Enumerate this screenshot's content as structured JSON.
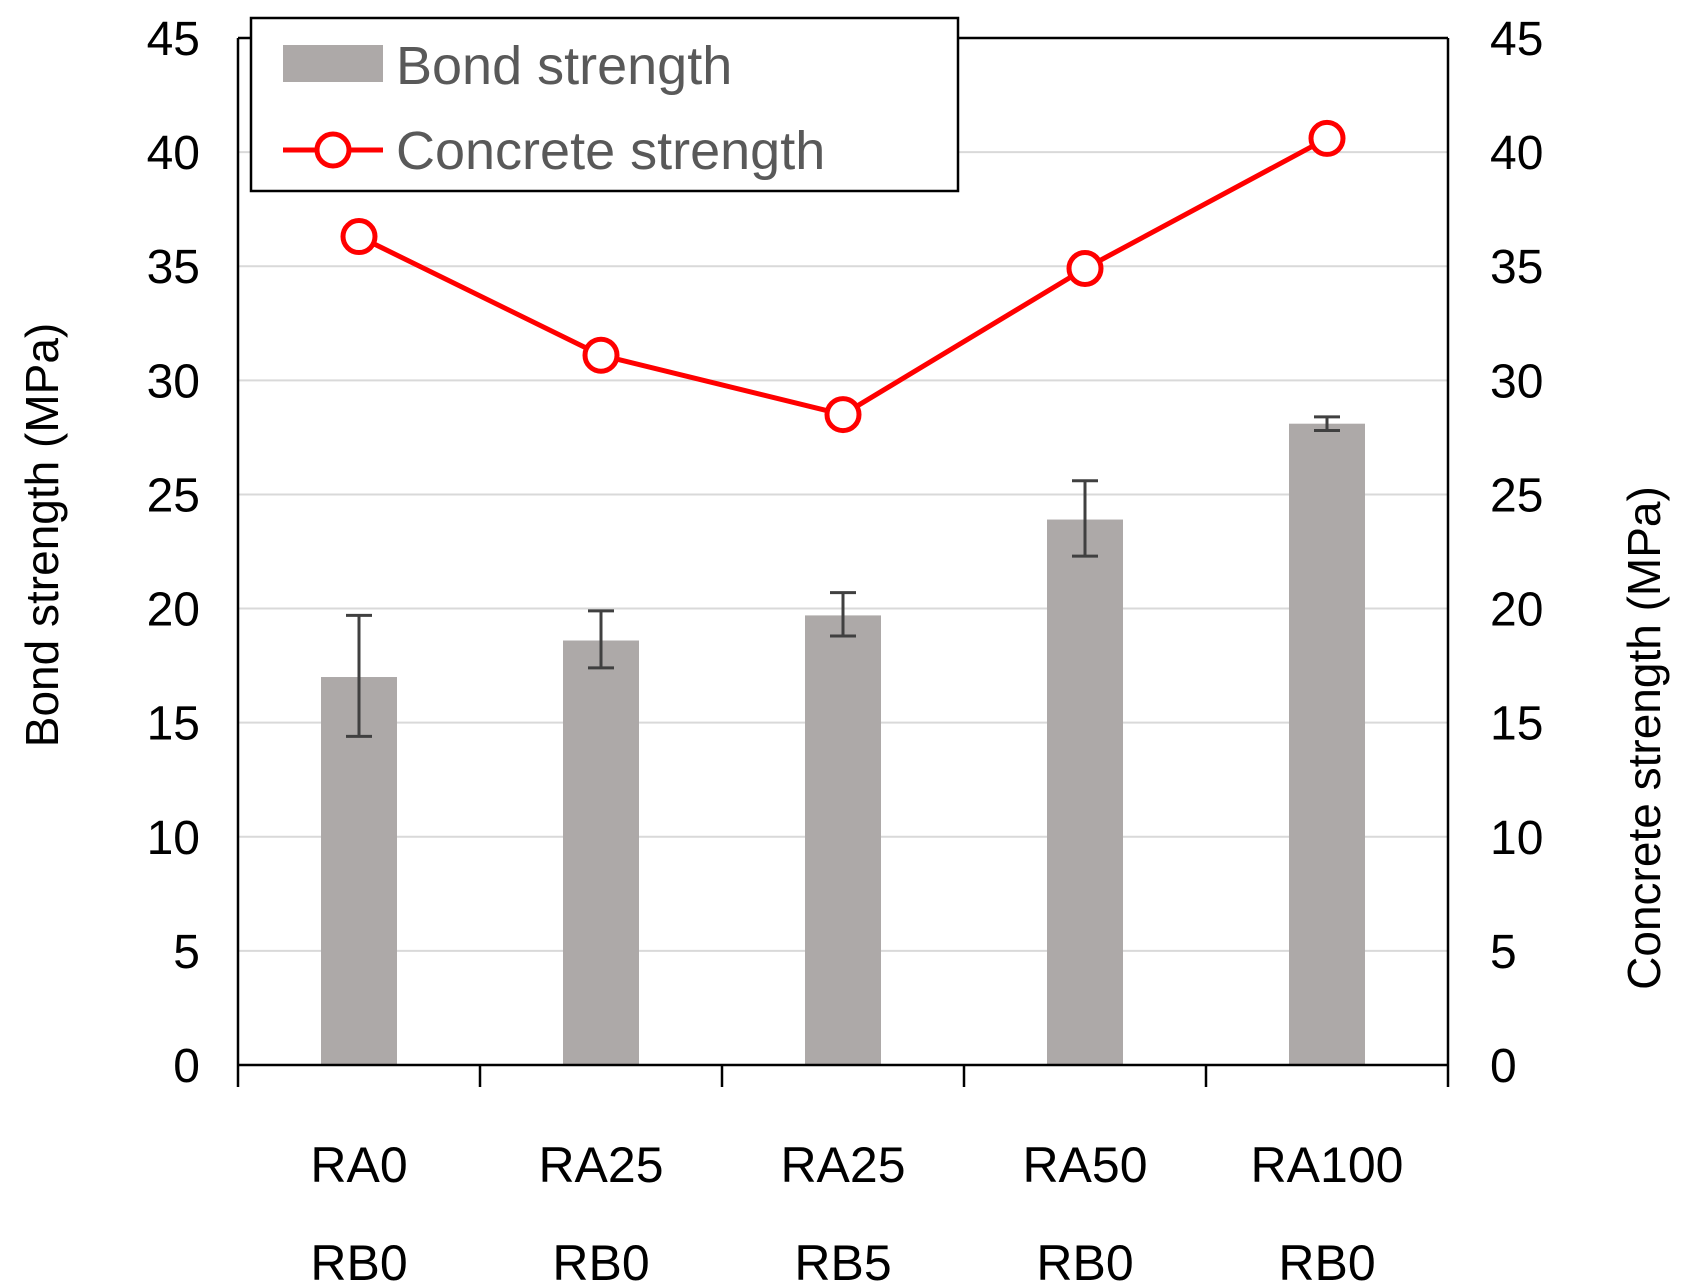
{
  "chart_data": {
    "type": "bar",
    "categories": [
      [
        "RA0",
        "RB0"
      ],
      [
        "RA25",
        "RB0"
      ],
      [
        "RA25",
        "RB5"
      ],
      [
        "RA50",
        "RB0"
      ],
      [
        "RA100",
        "RB0"
      ]
    ],
    "series": [
      {
        "name": "Bond strength",
        "kind": "bar",
        "axis": "left",
        "color": "#ADA9A8",
        "values": [
          17.0,
          18.6,
          19.7,
          23.9,
          28.1
        ],
        "error_low": [
          14.4,
          17.4,
          18.8,
          22.3,
          27.8
        ],
        "error_high": [
          19.7,
          19.9,
          20.7,
          25.6,
          28.4
        ]
      },
      {
        "name": "Concrete strength",
        "kind": "line",
        "axis": "right",
        "color": "#FF0000",
        "marker": "open-circle",
        "values": [
          36.3,
          31.1,
          28.5,
          34.9,
          40.6
        ]
      }
    ],
    "ylabel_left": "Bond strength (MPa)",
    "ylabel_right": "Concrete strength (MPa)",
    "ylim": [
      0,
      45
    ],
    "y2lim": [
      0,
      45
    ],
    "yticks": [
      0,
      5,
      10,
      15,
      20,
      25,
      30,
      35,
      40,
      45
    ],
    "grid": true,
    "legend": "top-left",
    "colors": {
      "gridline": "#D9D9D9",
      "axis": "#000000",
      "error_bar": "#404040"
    }
  }
}
